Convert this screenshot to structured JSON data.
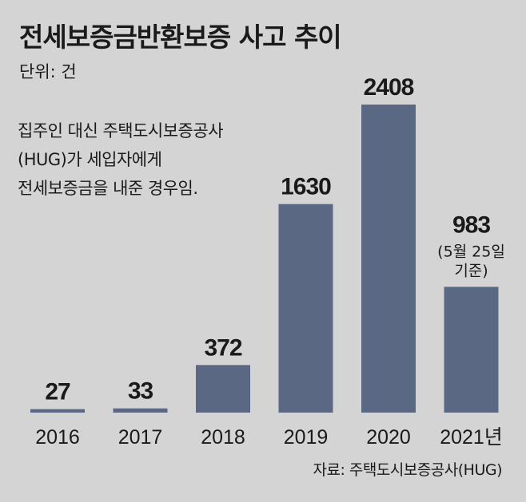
{
  "chart_data": {
    "type": "bar",
    "title": "전세보증금반환보증 사고 추이",
    "unit": "단위: 건",
    "note": [
      "집주인 대신 주택도시보증공사",
      "(HUG)가 세입자에게",
      "전세보증금을 내준 경우임."
    ],
    "categories": [
      "2016",
      "2017",
      "2018",
      "2019",
      "2020",
      "2021년"
    ],
    "values": [
      27,
      33,
      372,
      1630,
      2408,
      983
    ],
    "value_labels": [
      "27",
      "33",
      "372",
      "1630",
      "2408",
      "983"
    ],
    "annotation": {
      "category_index": 5,
      "lines": [
        "(5월 25일",
        "기준)"
      ]
    },
    "source": "자료: 주택도시보증공사(HUG)",
    "bar_color": "#5b6884",
    "grid": false,
    "legend": "none"
  }
}
